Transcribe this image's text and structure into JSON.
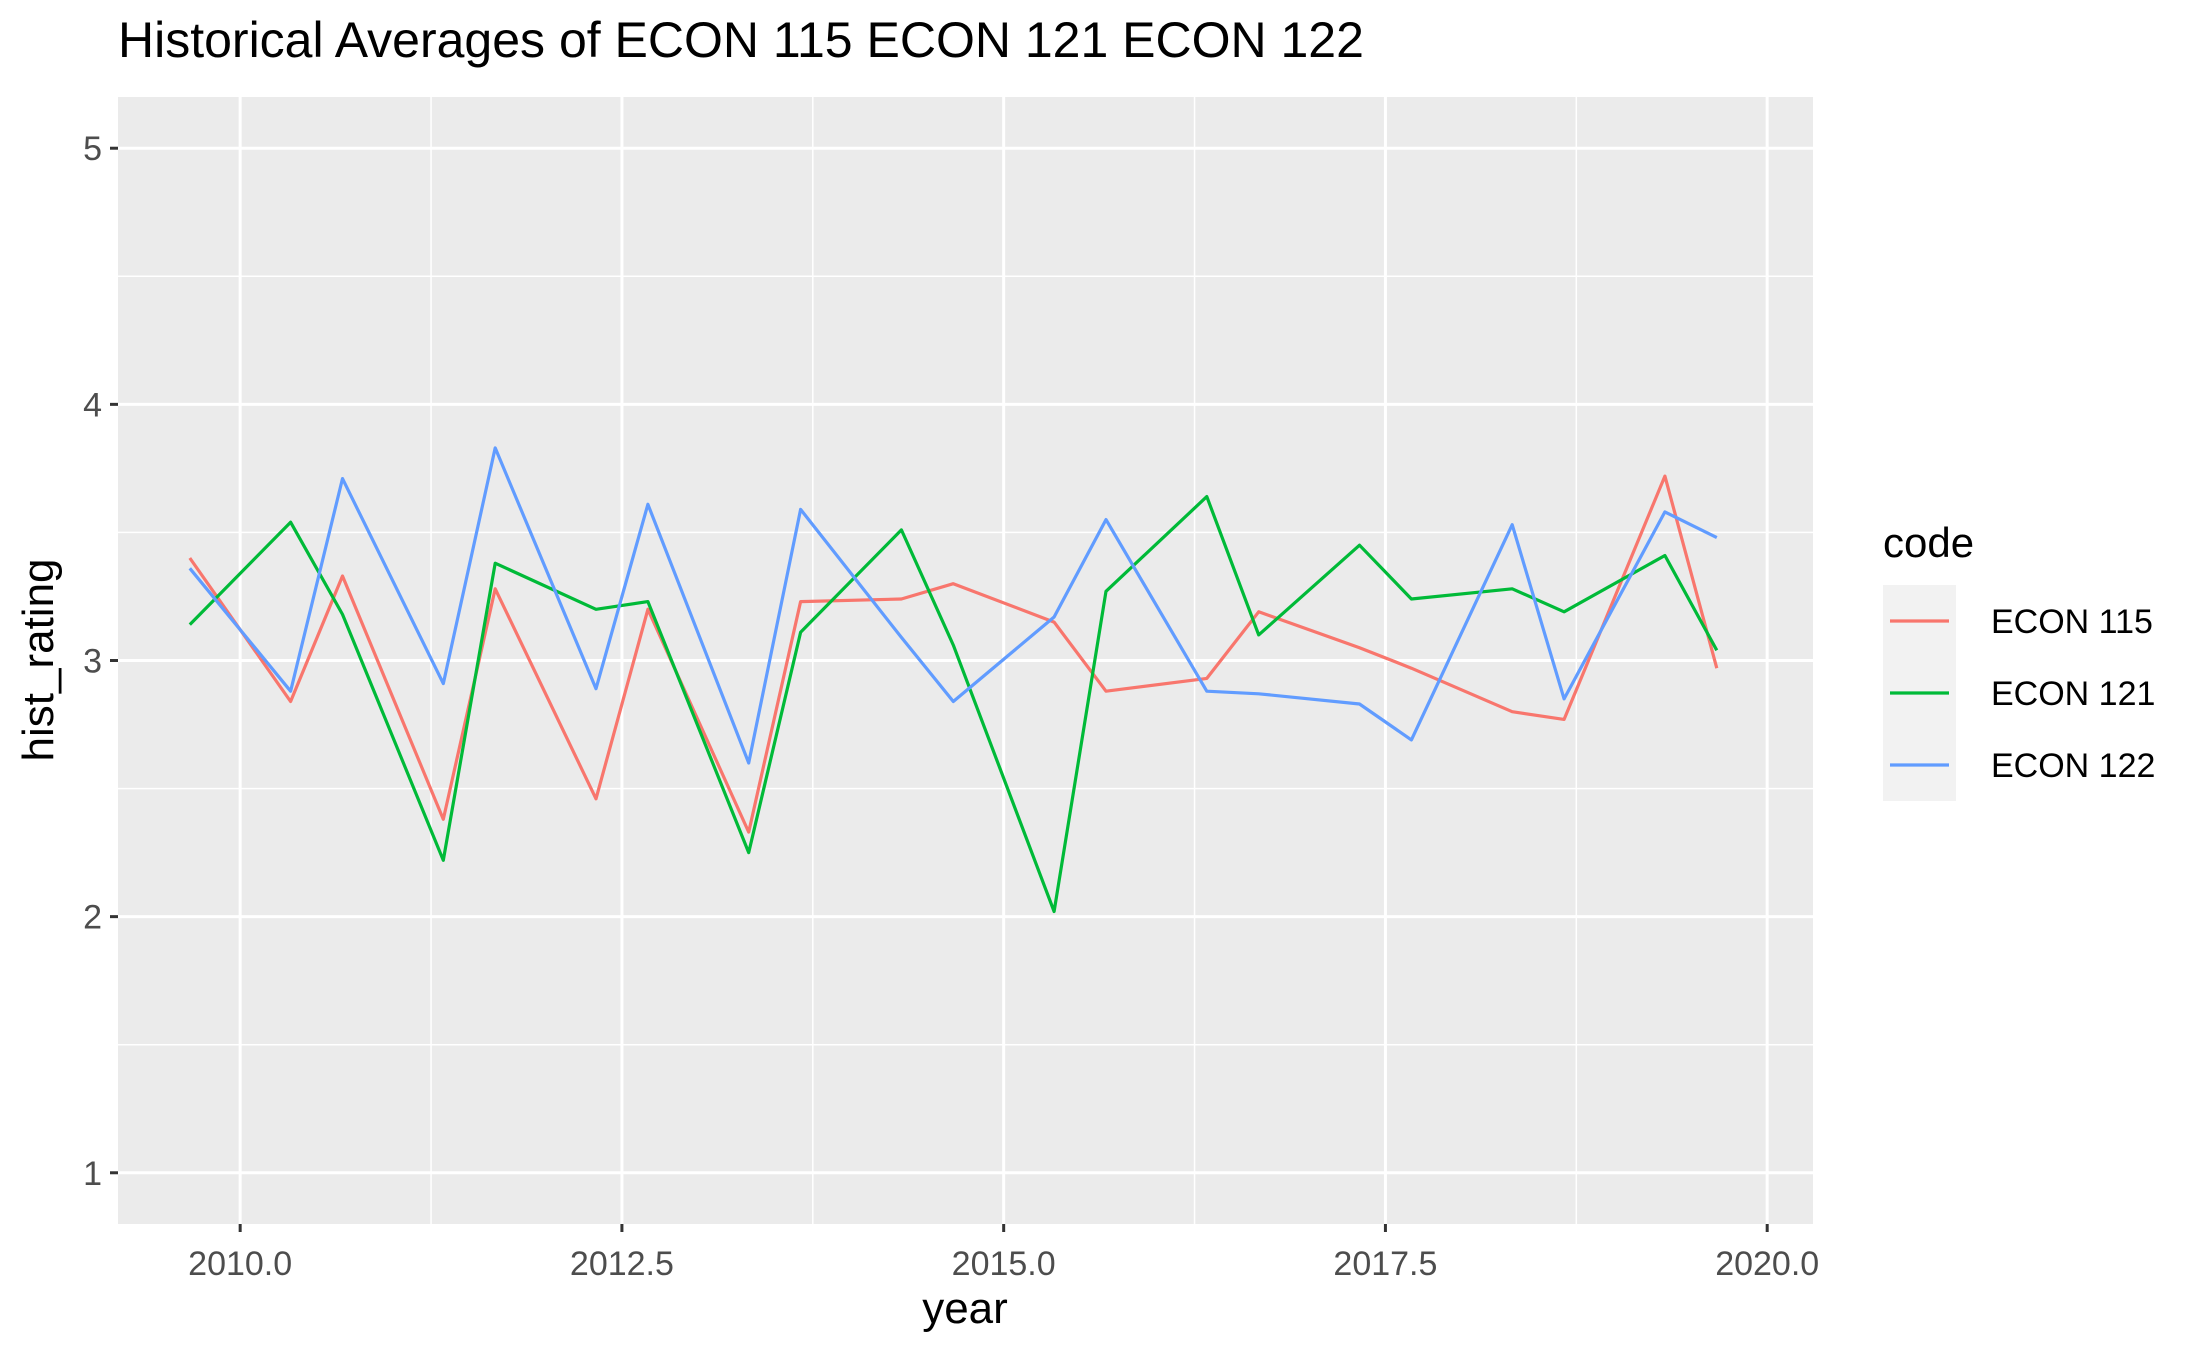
{
  "chart_data": {
    "type": "line",
    "title": "Historical Averages of ECON 115 ECON 121 ECON 122",
    "xlabel": "year",
    "ylabel": "hist_rating",
    "xlim": [
      2009.2,
      2020.3
    ],
    "ylim": [
      0.8,
      5.2
    ],
    "x_ticks": [
      2010.0,
      2012.5,
      2015.0,
      2017.5,
      2020.0
    ],
    "x_tick_labels": [
      "2010.0",
      "2012.5",
      "2015.0",
      "2017.5",
      "2020.0"
    ],
    "y_ticks": [
      1,
      2,
      3,
      4,
      5
    ],
    "y_tick_labels": [
      "1",
      "2",
      "3",
      "4",
      "5"
    ],
    "grid": true,
    "legend_title": "code",
    "legend_position": "right",
    "series": [
      {
        "name": "ECON 115",
        "color": "#F8766D",
        "x": [
          2009.67,
          2010.33,
          2010.67,
          2011.33,
          2011.67,
          2012.33,
          2012.67,
          2013.33,
          2013.67,
          2014.33,
          2014.67,
          2015.33,
          2015.67,
          2016.33,
          2016.67,
          2017.33,
          2017.67,
          2018.33,
          2018.67,
          2019.33,
          2019.67
        ],
        "values": [
          3.4,
          2.84,
          3.33,
          2.38,
          3.28,
          2.46,
          3.2,
          2.33,
          3.23,
          3.24,
          3.3,
          3.15,
          2.88,
          2.93,
          3.19,
          3.05,
          2.97,
          2.8,
          2.77,
          3.72,
          2.97
        ]
      },
      {
        "name": "ECON 121",
        "color": "#00BA38",
        "x": [
          2009.67,
          2010.33,
          2010.67,
          2011.33,
          2011.67,
          2012.33,
          2012.67,
          2013.33,
          2013.67,
          2014.33,
          2014.67,
          2015.33,
          2015.67,
          2016.33,
          2016.67,
          2017.33,
          2017.67,
          2018.33,
          2018.67,
          2019.33,
          2019.67
        ],
        "values": [
          3.14,
          3.54,
          3.18,
          2.22,
          3.38,
          3.2,
          3.23,
          2.25,
          3.11,
          3.51,
          3.06,
          2.02,
          3.27,
          3.64,
          3.1,
          3.45,
          3.24,
          3.28,
          3.19,
          3.41,
          3.04
        ]
      },
      {
        "name": "ECON 122",
        "color": "#619CFF",
        "x": [
          2009.67,
          2010.33,
          2010.67,
          2011.33,
          2011.67,
          2012.33,
          2012.67,
          2013.33,
          2013.67,
          2014.33,
          2014.67,
          2015.33,
          2015.67,
          2016.33,
          2016.67,
          2017.33,
          2017.67,
          2018.33,
          2018.67,
          2019.33,
          2019.67
        ],
        "values": [
          3.36,
          2.88,
          3.71,
          2.91,
          3.83,
          2.89,
          3.61,
          2.6,
          3.59,
          3.09,
          2.84,
          3.17,
          3.55,
          2.88,
          2.87,
          2.83,
          2.69,
          3.53,
          2.85,
          3.58,
          3.48
        ]
      }
    ]
  }
}
